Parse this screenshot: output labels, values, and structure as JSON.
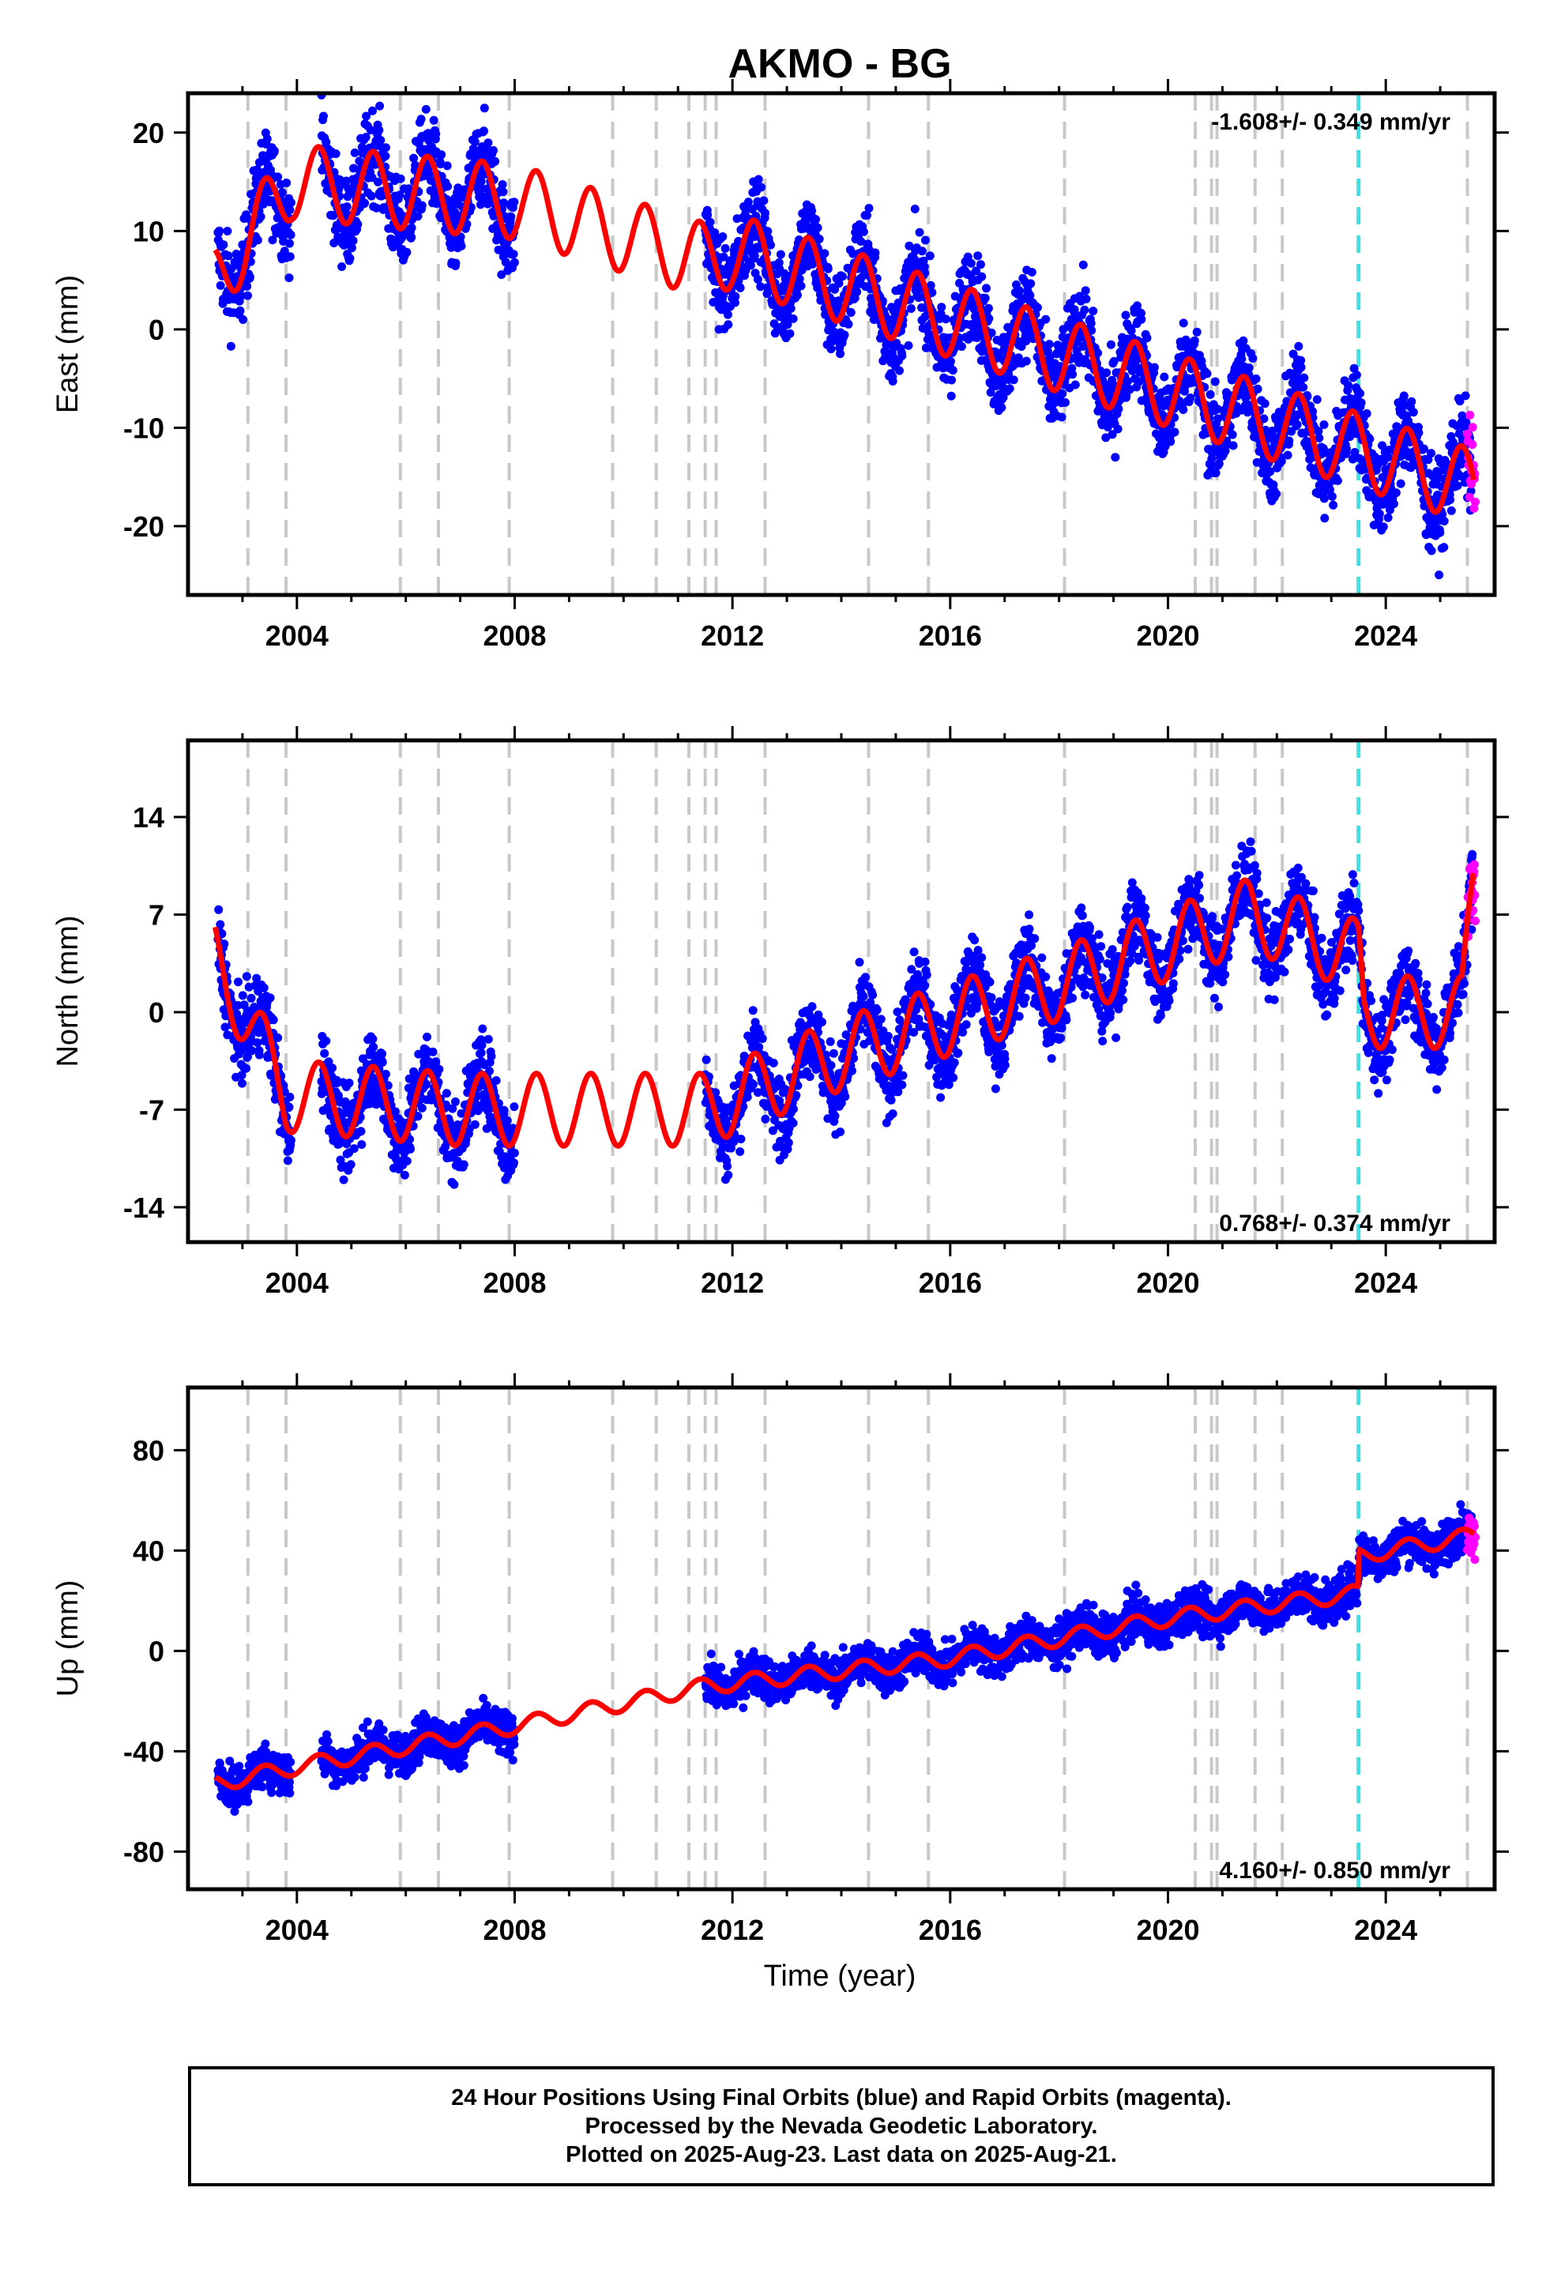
{
  "chart_data": {
    "title": "AKMO - BG",
    "type": "scatter",
    "xlabel": "Time (year)",
    "xlim": [
      2002.0,
      2026.0
    ],
    "xticks": [
      2004,
      2008,
      2012,
      2016,
      2020,
      2024
    ],
    "colors": {
      "final": "#0000ff",
      "rapid": "#ff00ff",
      "model": "#ff0000",
      "event": "#c8c8c8",
      "step": "#40e0e0"
    },
    "event_lines": [
      2003.1,
      2003.8,
      2005.9,
      2006.6,
      2007.9,
      2009.8,
      2010.6,
      2011.2,
      2011.5,
      2011.7,
      2012.6,
      2014.5,
      2015.6,
      2018.1,
      2020.5,
      2020.8,
      2020.9,
      2021.6,
      2022.1,
      2025.5
    ],
    "step_line": 2023.5,
    "panels": [
      {
        "name": "east",
        "ylabel": "East (mm)",
        "ylim": [
          -27.0,
          24.0
        ],
        "yticks": [
          "20",
          "10",
          "0",
          "-10",
          "-20"
        ],
        "ytick_values": [
          20,
          10,
          0,
          -10,
          -20
        ],
        "rate_text": "-1.608+/- 0.349 mm/yr",
        "rate_position": "top-right",
        "trend": {
          "x": [
            2002.5,
            2003.9,
            2008.0,
            2011.5,
            2012.0,
            2025.6
          ],
          "y": [
            5,
            15,
            13,
            7,
            8,
            -16
          ]
        },
        "annual_amplitude": 3.8,
        "scatter": 3.2,
        "gaps": [
          [
            2008.0,
            2011.5
          ]
        ],
        "model_peaks": [
          [
            2003.0,
            15.5
          ],
          [
            2003.9,
            18.2
          ],
          [
            2004.9,
            17.0
          ],
          [
            2006.0,
            16.5
          ],
          [
            2006.9,
            17.0
          ],
          [
            2007.9,
            16.0
          ]
        ]
      },
      {
        "name": "north",
        "ylabel": "North (mm)",
        "ylim": [
          -16.5,
          19.5
        ],
        "yticks": [
          "14",
          "7",
          "0",
          "-7",
          "-14"
        ],
        "ytick_values": [
          14,
          7,
          0,
          -7,
          -14
        ],
        "rate_text": "0.768+/- 0.374 mm/yr",
        "rate_position": "bottom-right",
        "trend": {
          "x": [
            2002.5,
            2003.8,
            2007.0,
            2011.5,
            2014.0,
            2018.0,
            2021.5,
            2023.5,
            2023.6,
            2025.4,
            2025.6
          ],
          "y": [
            4,
            -6,
            -7,
            -7,
            -3,
            2,
            7,
            4,
            0,
            0,
            9
          ]
        },
        "annual_amplitude": 2.6,
        "scatter": 2.0,
        "gaps": [
          [
            2008.0,
            2011.5
          ]
        ],
        "model_peaks": []
      },
      {
        "name": "up",
        "ylabel": "Up (mm)",
        "ylim": [
          -95.0,
          105.0
        ],
        "yticks": [
          "80",
          "40",
          "0",
          "-40",
          "-80"
        ],
        "ytick_values": [
          80,
          40,
          0,
          -40,
          -80
        ],
        "rate_text": "4.160+/- 0.850 mm/yr",
        "rate_position": "bottom-right",
        "trend": {
          "x": [
            2002.5,
            2003.8,
            2008.0,
            2011.5,
            2016.0,
            2020.0,
            2023.49,
            2023.51,
            2025.6
          ],
          "y": [
            -53,
            -47,
            -30,
            -14,
            -3,
            13,
            23,
            38,
            46
          ]
        },
        "annual_amplitude": 3.2,
        "scatter": 6.0,
        "gaps": [
          [
            2008.0,
            2011.5
          ]
        ],
        "model_peaks": []
      }
    ]
  },
  "footer": {
    "line1": "24 Hour Positions Using Final Orbits (blue) and Rapid Orbits (magenta).",
    "line2": "Processed by the Nevada Geodetic Laboratory.",
    "line3": "Plotted on 2025-Aug-23. Last data on 2025-Aug-21."
  }
}
